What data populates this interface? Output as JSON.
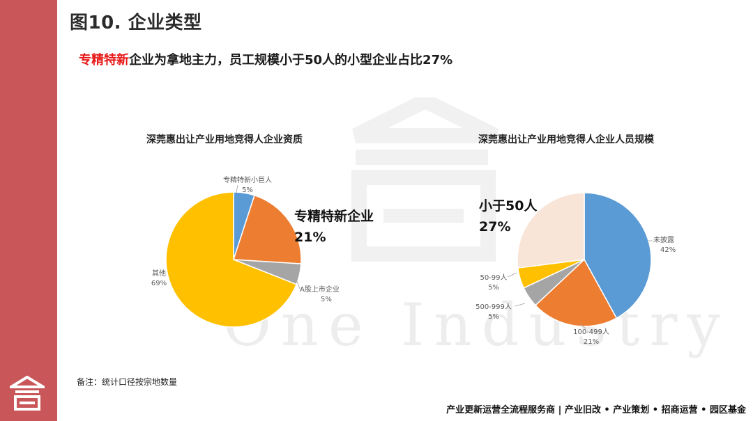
{
  "page": {
    "title": "图10. 企业类型",
    "headline_highlight": "专精特新",
    "headline_rest": "企业为拿地主力，员工规模小于50人的小型企业占比27%",
    "watermark_text": "One Industry",
    "note": "备注：统计口径按宗地数量",
    "footer": "产业更新运营全流程服务商  |  产业旧改 • 产业策划 • 招商运营 • 园区基金",
    "brand_color": "#c9575a",
    "highlight_color": "#e81818"
  },
  "chart_data": [
    {
      "type": "pie",
      "title": "深莞惠出让产业用地竞得人企业资质",
      "callout": {
        "line1": "专精特新企业",
        "line2": "21%"
      },
      "slices": [
        {
          "label": "专精特新小巨人",
          "value": 5,
          "pct_text": "5%",
          "color": "#5b9bd5"
        },
        {
          "label": "",
          "value": 21,
          "pct_text": "",
          "color": "#ed7d31"
        },
        {
          "label": "A股上市企业",
          "value": 5,
          "pct_text": "5%",
          "color": "#a5a5a5"
        },
        {
          "label": "其他",
          "value": 69,
          "pct_text": "69%",
          "color": "#ffc000"
        }
      ]
    },
    {
      "type": "pie",
      "title": "深莞惠出让产业用地竞得人企业人员规模",
      "callout": {
        "line1": "小于50人",
        "line2": "27%"
      },
      "slices": [
        {
          "label": "未披露",
          "value": 42,
          "pct_text": "42%",
          "color": "#5b9bd5"
        },
        {
          "label": "100-499人",
          "value": 21,
          "pct_text": "21%",
          "color": "#ed7d31"
        },
        {
          "label": "500-999人",
          "value": 5,
          "pct_text": "5%",
          "color": "#a5a5a5"
        },
        {
          "label": "50-99人",
          "value": 5,
          "pct_text": "5%",
          "color": "#ffc000"
        },
        {
          "label": "",
          "value": 27,
          "pct_text": "",
          "color": "#f9e4d8"
        }
      ]
    }
  ]
}
